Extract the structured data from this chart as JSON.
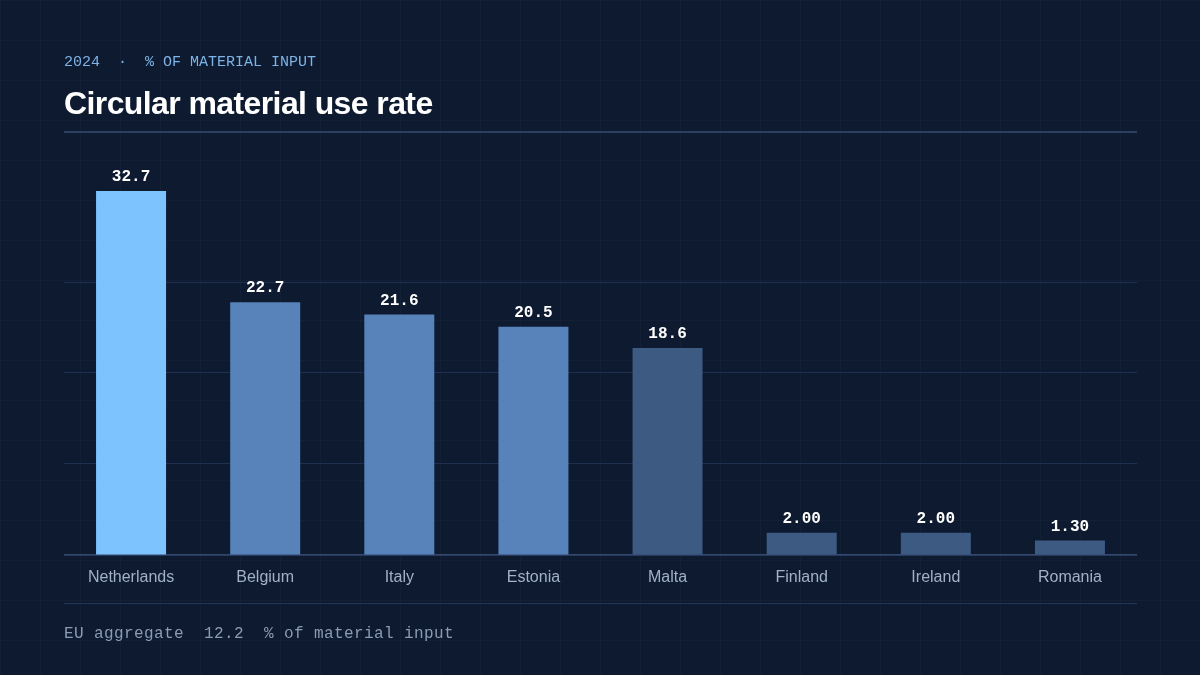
{
  "chart_data": {
    "type": "bar",
    "title": "Circular material use rate",
    "subtitle": "2024  ·  % OF MATERIAL INPUT",
    "categories": [
      "Netherlands",
      "Belgium",
      "Italy",
      "Estonia",
      "Malta",
      "Finland",
      "Ireland",
      "Romania"
    ],
    "values": [
      32.7,
      22.7,
      21.6,
      20.5,
      18.6,
      2,
      2,
      1.3
    ],
    "colors": [
      "#7dc4ff",
      "#5783ba",
      "#5783ba",
      "#5783ba",
      "#3d5a82",
      "#3d5a82",
      "#3d5a82",
      "#3d5a82"
    ],
    "value_labels": [
      "32.7",
      "22.7",
      "21.6",
      "20.5",
      "18.6",
      "2.00",
      "2.00",
      "1.30"
    ],
    "ylim": [
      0,
      32.7
    ],
    "yticks": [
      {
        "value": 0,
        "label": null
      },
      {
        "value": 8.2,
        "label": null
      },
      {
        "value": 16.4,
        "label": null
      },
      {
        "value": 24.5,
        "label": null
      }
    ],
    "grid": "y",
    "tick_labels": "x",
    "annotations": [
      "EU aggregate  12.2  % of material input"
    ]
  }
}
